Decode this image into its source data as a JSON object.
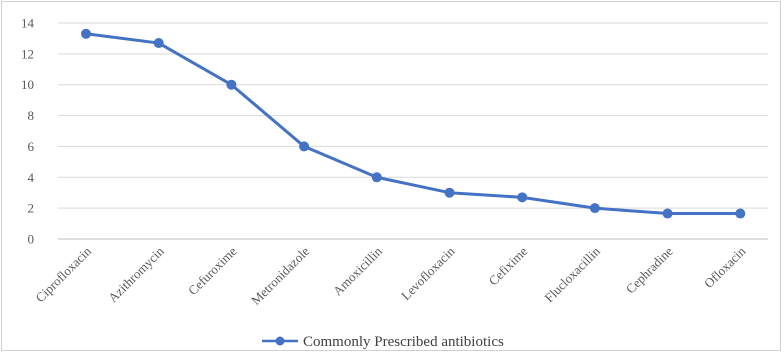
{
  "chart_data": {
    "type": "line",
    "title": "",
    "xlabel": "",
    "ylabel": "",
    "ylim": [
      0,
      14
    ],
    "yticks": [
      0,
      2,
      4,
      6,
      8,
      10,
      12,
      14
    ],
    "grid": true,
    "legend_position": "bottom",
    "categories": [
      "Ciprofloxacin",
      "Azithromycin",
      "Cefuroxime",
      "Metronidazole",
      "Amoxicillin",
      "Levofloxacin",
      "Cefixime",
      "Flucloxacillin",
      "Cephradine",
      "Ofloxacin"
    ],
    "series": [
      {
        "name": "Commonly Prescribed antibiotics",
        "color": "#4472c4",
        "values": [
          13.3,
          12.7,
          10.0,
          6.0,
          4.0,
          3.0,
          2.7,
          2.0,
          1.65,
          1.65
        ]
      }
    ]
  }
}
